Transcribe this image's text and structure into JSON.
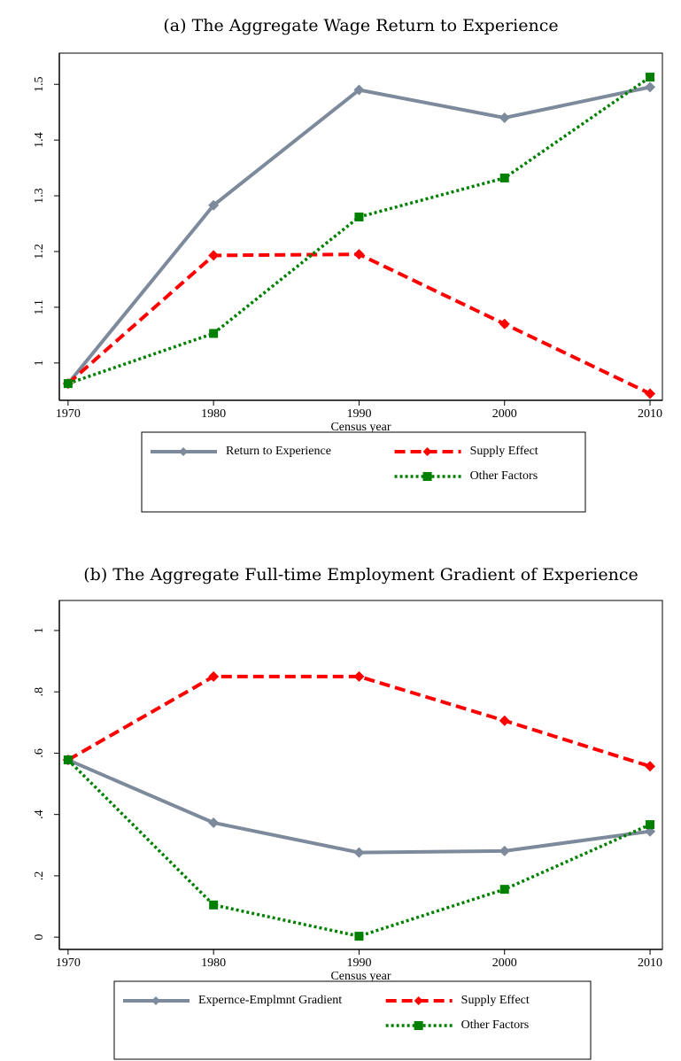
{
  "chart_data": [
    {
      "type": "line",
      "title": "(a) The Aggregate Wage Return to Experience",
      "xlabel": "Census year",
      "x": [
        1970,
        1980,
        1990,
        2000,
        2010
      ],
      "xlim": [
        1969.4,
        2010.85
      ],
      "xticks": [
        1970,
        1980,
        1990,
        2000,
        2010
      ],
      "ylim": [
        0.933,
        1.556
      ],
      "yticks": [
        1,
        1.1,
        1.2,
        1.3,
        1.4,
        1.5
      ],
      "series": [
        {
          "name": "Return to Experience",
          "color": "#7d8a9c",
          "dash": "solid",
          "marker": "diamond",
          "values": [
            0.963,
            1.283,
            1.49,
            1.44,
            1.495
          ]
        },
        {
          "name": "Supply Effect",
          "color": "#ff0000",
          "dash": "dashed",
          "marker": "diamond",
          "values": [
            0.963,
            1.193,
            1.195,
            1.07,
            0.945
          ]
        },
        {
          "name": "Other Factors",
          "color": "#008000",
          "dash": "dotted",
          "marker": "square",
          "values": [
            0.963,
            1.053,
            1.262,
            1.332,
            1.513
          ]
        }
      ]
    },
    {
      "type": "line",
      "title": "(b) The Aggregate Full-time Employment Gradient of Experience",
      "xlabel": "Census year",
      "x": [
        1970,
        1980,
        1990,
        2000,
        2010
      ],
      "xlim": [
        1969.4,
        2010.85
      ],
      "xticks": [
        1970,
        1980,
        1990,
        2000,
        2010
      ],
      "ylim": [
        -0.04,
        1.098
      ],
      "yticks": [
        0,
        {
          "value": 0.2,
          "label": ".2"
        },
        {
          "value": 0.4,
          "label": ".4"
        },
        {
          "value": 0.6,
          "label": ".6"
        },
        {
          "value": 0.8,
          "label": ".8"
        },
        1
      ],
      "series": [
        {
          "name": "Expernce-Emplmnt Gradient",
          "color": "#7d8a9c",
          "dash": "solid",
          "marker": "diamond",
          "values": [
            0.578,
            0.373,
            0.276,
            0.281,
            0.345
          ]
        },
        {
          "name": "Supply Effect",
          "color": "#ff0000",
          "dash": "dashed",
          "marker": "diamond",
          "values": [
            0.578,
            0.85,
            0.85,
            0.706,
            0.557
          ]
        },
        {
          "name": "Other Factors",
          "color": "#008000",
          "dash": "dotted",
          "marker": "square",
          "values": [
            0.578,
            0.105,
            0.003,
            0.156,
            0.367
          ]
        }
      ]
    }
  ]
}
